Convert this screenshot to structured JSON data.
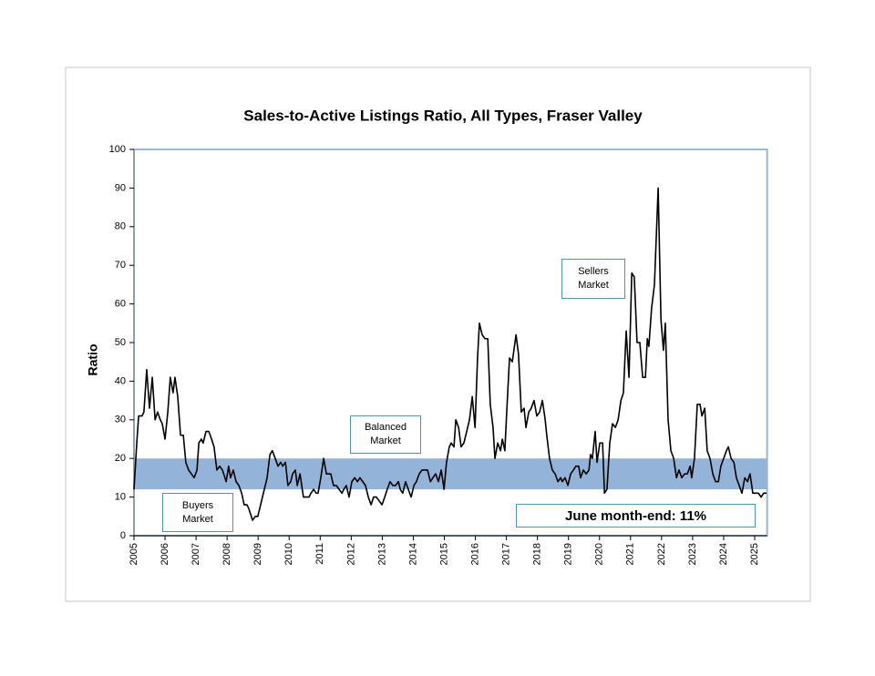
{
  "chart_data": {
    "type": "line",
    "title": "Sales-to-Active Listings Ratio, All Types, Fraser Valley",
    "y_label": "Ratio",
    "xlim": [
      2005,
      2025.4
    ],
    "xticks": [
      2005,
      2006,
      2007,
      2008,
      2009,
      2010,
      2011,
      2012,
      2013,
      2014,
      2015,
      2016,
      2017,
      2018,
      2019,
      2020,
      2021,
      2022,
      2023,
      2024,
      2025
    ],
    "ylim": [
      0,
      100
    ],
    "yticks": [
      0,
      10,
      20,
      30,
      40,
      50,
      60,
      70,
      80,
      90,
      100
    ],
    "band": [
      12,
      20
    ],
    "band_color": "#94b3d8",
    "annotations": [
      "Sellers Market",
      "Balanced Market",
      "Buyers Market",
      "June month-end: 11%"
    ],
    "series": [
      {
        "name": "Ratio",
        "color": "#000000",
        "x": [
          2005.0,
          2005.09,
          2005.15,
          2005.26,
          2005.32,
          2005.41,
          2005.5,
          2005.59,
          2005.68,
          2005.76,
          2005.85,
          2005.91,
          2006.0,
          2006.09,
          2006.17,
          2006.26,
          2006.32,
          2006.41,
          2006.5,
          2006.59,
          2006.67,
          2006.76,
          2006.85,
          2006.94,
          2007.03,
          2007.09,
          2007.17,
          2007.23,
          2007.32,
          2007.41,
          2007.5,
          2007.58,
          2007.67,
          2007.76,
          2007.85,
          2007.97,
          2008.05,
          2008.11,
          2008.2,
          2008.29,
          2008.38,
          2008.47,
          2008.55,
          2008.64,
          2008.7,
          2008.82,
          2008.91,
          2008.99,
          2009.08,
          2009.2,
          2009.29,
          2009.38,
          2009.46,
          2009.55,
          2009.64,
          2009.73,
          2009.79,
          2009.88,
          2009.96,
          2010.05,
          2010.11,
          2010.2,
          2010.26,
          2010.35,
          2010.46,
          2010.55,
          2010.64,
          2010.7,
          2010.79,
          2010.87,
          2010.93,
          2011.02,
          2011.11,
          2011.2,
          2011.26,
          2011.34,
          2011.43,
          2011.52,
          2011.61,
          2011.7,
          2011.76,
          2011.84,
          2011.93,
          2012.02,
          2012.11,
          2012.2,
          2012.28,
          2012.37,
          2012.46,
          2012.55,
          2012.64,
          2012.72,
          2012.81,
          2012.9,
          2012.99,
          2013.08,
          2013.16,
          2013.25,
          2013.34,
          2013.43,
          2013.52,
          2013.58,
          2013.66,
          2013.75,
          2013.84,
          2013.93,
          2014.02,
          2014.1,
          2014.19,
          2014.28,
          2014.37,
          2014.46,
          2014.55,
          2014.63,
          2014.72,
          2014.81,
          2014.9,
          2014.99,
          2015.07,
          2015.16,
          2015.22,
          2015.31,
          2015.37,
          2015.46,
          2015.54,
          2015.63,
          2015.72,
          2015.81,
          2015.9,
          2015.99,
          2016.07,
          2016.13,
          2016.22,
          2016.31,
          2016.4,
          2016.48,
          2016.57,
          2016.63,
          2016.72,
          2016.81,
          2016.87,
          2016.95,
          2017.01,
          2017.1,
          2017.19,
          2017.31,
          2017.39,
          2017.48,
          2017.57,
          2017.63,
          2017.72,
          2017.8,
          2017.89,
          2017.98,
          2018.07,
          2018.16,
          2018.25,
          2018.3,
          2018.39,
          2018.48,
          2018.57,
          2018.66,
          2018.75,
          2018.8,
          2018.89,
          2018.98,
          2019.07,
          2019.16,
          2019.24,
          2019.33,
          2019.39,
          2019.48,
          2019.57,
          2019.66,
          2019.71,
          2019.77,
          2019.86,
          2019.92,
          2020.01,
          2020.1,
          2020.16,
          2020.24,
          2020.33,
          2020.42,
          2020.51,
          2020.6,
          2020.69,
          2020.77,
          2020.86,
          2020.95,
          2021.04,
          2021.12,
          2021.21,
          2021.3,
          2021.39,
          2021.48,
          2021.54,
          2021.59,
          2021.68,
          2021.77,
          2021.89,
          2021.98,
          2022.06,
          2022.12,
          2022.21,
          2022.3,
          2022.39,
          2022.48,
          2022.56,
          2022.65,
          2022.74,
          2022.83,
          2022.92,
          2022.97,
          2023.06,
          2023.15,
          2023.24,
          2023.3,
          2023.39,
          2023.47,
          2023.56,
          2023.65,
          2023.74,
          2023.83,
          2023.91,
          2024.0,
          2024.09,
          2024.15,
          2024.24,
          2024.33,
          2024.41,
          2024.5,
          2024.59,
          2024.68,
          2024.77,
          2024.85,
          2024.94,
          2025.03,
          2025.12,
          2025.21,
          2025.29,
          2025.38
        ],
        "values": [
          12,
          24,
          31,
          31,
          32,
          43,
          33,
          41,
          30,
          32,
          30,
          29,
          25,
          32,
          41,
          37,
          41,
          36,
          26,
          26,
          19,
          17,
          16,
          15,
          17,
          24,
          25,
          24,
          27,
          27,
          25,
          23,
          17,
          18,
          17,
          14,
          18,
          15,
          17,
          14,
          13,
          11,
          8,
          8,
          7,
          4,
          5,
          5,
          8,
          12,
          15,
          21,
          22,
          20,
          18,
          19,
          18,
          19,
          13,
          14,
          16,
          17,
          13,
          16,
          10,
          10,
          10,
          11,
          12,
          11,
          11,
          15,
          20,
          16,
          16,
          16,
          13,
          13,
          12,
          11,
          12,
          13,
          10,
          14,
          15,
          14,
          15,
          14,
          13,
          10,
          8,
          10,
          10,
          9,
          8,
          10,
          12,
          14,
          13,
          13,
          14,
          12,
          11,
          14,
          12,
          10,
          13,
          14,
          16,
          17,
          17,
          17,
          14,
          15,
          16,
          14,
          17,
          12,
          19,
          23,
          24,
          23,
          30,
          28,
          23,
          24,
          27,
          30,
          36,
          28,
          46,
          55,
          52,
          51,
          51,
          34,
          28,
          20,
          24,
          22,
          25,
          22,
          32,
          46,
          45,
          52,
          47,
          32,
          33,
          28,
          32,
          33,
          35,
          31,
          32,
          35,
          30,
          26,
          20,
          17,
          16,
          14,
          15,
          14,
          15,
          13,
          16,
          17,
          18,
          18,
          15,
          17,
          16,
          17,
          21,
          20,
          27,
          19,
          24,
          24,
          11,
          12,
          24,
          29,
          28,
          30,
          35,
          37,
          53,
          41,
          68,
          67,
          50,
          50,
          41,
          41,
          51,
          49,
          59,
          65,
          90,
          56,
          48,
          55,
          30,
          22,
          20,
          15,
          17,
          15,
          16,
          16,
          18,
          15,
          20,
          34,
          34,
          31,
          33,
          22,
          20,
          16,
          14,
          14,
          18,
          20,
          22,
          23,
          20,
          19,
          15,
          13,
          11,
          15,
          14,
          16,
          11,
          11,
          11,
          10,
          11,
          11
        ]
      }
    ]
  }
}
